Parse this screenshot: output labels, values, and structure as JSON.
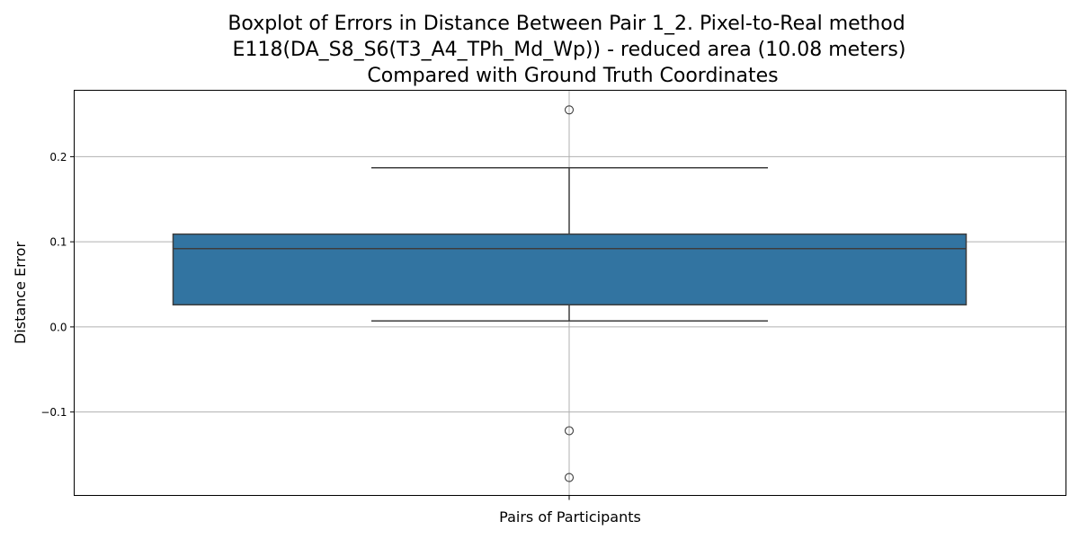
{
  "chart_data": {
    "type": "box",
    "title_lines": [
      "Boxplot of Errors in Distance Between Pair 1_2. Pixel-to-Real method",
      "E118(DA_S8_S6(T3_A4_TPh_Md_Wp)) - reduced area (10.08 meters)",
      "Compared with Ground Truth Coordinates"
    ],
    "xlabel": "Pairs of Participants",
    "ylabel": "Distance Error",
    "ylim": [
      -0.198,
      0.278
    ],
    "yticks": [
      -0.1,
      0.0,
      0.1,
      0.2
    ],
    "ytick_labels": [
      "−0.1",
      "0.0",
      "0.1",
      "0.2"
    ],
    "grid": true,
    "box": {
      "q1": 0.026,
      "median": 0.092,
      "q3": 0.109,
      "whisker_low": 0.007,
      "whisker_high": 0.187,
      "outliers": [
        0.255,
        -0.122,
        -0.177
      ]
    },
    "colors": {
      "box_fill": "#3274a1",
      "line": "#3d3d3d",
      "grid": "#b0b0b0"
    }
  }
}
